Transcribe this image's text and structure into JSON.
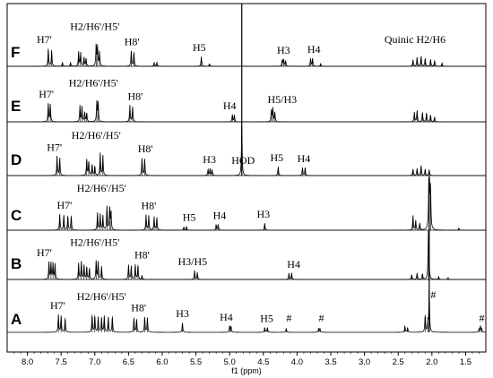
{
  "chart_data": {
    "type": "line",
    "xlabel": "f1 (ppm)",
    "x_reversed": true,
    "xlim": [
      8.3,
      1.2
    ],
    "xticks": [
      8.0,
      7.5,
      7.0,
      6.5,
      6.0,
      5.5,
      5.0,
      4.5,
      4.0,
      3.5,
      3.0,
      2.5,
      2.0,
      1.5
    ],
    "xtick_labels": [
      "8.0",
      "7.5",
      "7.0",
      "6.5",
      "6.0",
      "5.5",
      "5.0",
      "4.5",
      "4.0",
      "3.5",
      "3.0",
      "2.5",
      "2.0",
      "1.5"
    ],
    "spectra": [
      {
        "label": "F",
        "peaks": [
          [
            7.69,
            0.55
          ],
          [
            7.64,
            0.5
          ],
          [
            7.48,
            0.12
          ],
          [
            7.36,
            0.12
          ],
          [
            7.24,
            0.45
          ],
          [
            7.21,
            0.42
          ],
          [
            7.16,
            0.28
          ],
          [
            7.13,
            0.25
          ],
          [
            6.98,
            0.68
          ],
          [
            6.96,
            0.62
          ],
          [
            6.93,
            0.45
          ],
          [
            6.46,
            0.48
          ],
          [
            6.42,
            0.44
          ],
          [
            6.12,
            0.12
          ],
          [
            6.08,
            0.12
          ],
          [
            5.42,
            0.3
          ],
          [
            5.3,
            0.08
          ],
          [
            4.22,
            0.2
          ],
          [
            4.2,
            0.22
          ],
          [
            4.17,
            0.18
          ],
          [
            3.8,
            0.25
          ],
          [
            3.77,
            0.25
          ],
          [
            3.65,
            0.08
          ],
          [
            2.28,
            0.2
          ],
          [
            2.22,
            0.28
          ],
          [
            2.16,
            0.32
          ],
          [
            2.1,
            0.25
          ],
          [
            2.02,
            0.22
          ],
          [
            1.96,
            0.18
          ],
          [
            1.85,
            0.1
          ]
        ],
        "annotations": [
          {
            "text": "H7'",
            "ppm": 7.75
          },
          {
            "text": "H2/H6'/H5'",
            "ppm": 7.0
          },
          {
            "text": "H8'",
            "ppm": 6.45
          },
          {
            "text": "H5",
            "ppm": 5.45
          },
          {
            "text": "H3",
            "ppm": 4.2
          },
          {
            "text": "H4",
            "ppm": 3.75
          },
          {
            "text": "Quinic H2/H6",
            "ppm": 2.25
          }
        ]
      },
      {
        "label": "E",
        "peaks": [
          [
            7.69,
            0.58
          ],
          [
            7.66,
            0.55
          ],
          [
            7.22,
            0.5
          ],
          [
            7.19,
            0.47
          ],
          [
            7.15,
            0.3
          ],
          [
            7.12,
            0.28
          ],
          [
            6.97,
            0.65
          ],
          [
            6.95,
            0.6
          ],
          [
            6.48,
            0.52
          ],
          [
            6.44,
            0.48
          ],
          [
            4.96,
            0.22
          ],
          [
            4.93,
            0.22
          ],
          [
            4.38,
            0.35
          ],
          [
            4.36,
            0.42
          ],
          [
            4.33,
            0.3
          ],
          [
            2.26,
            0.3
          ],
          [
            2.22,
            0.35
          ],
          [
            2.14,
            0.3
          ],
          [
            2.08,
            0.28
          ],
          [
            2.02,
            0.22
          ],
          [
            1.96,
            0.15
          ]
        ],
        "annotations": [
          {
            "text": "H7'",
            "ppm": 7.72
          },
          {
            "text": "H2/H6'/H5'",
            "ppm": 7.02
          },
          {
            "text": "H8'",
            "ppm": 6.4
          },
          {
            "text": "H4",
            "ppm": 5.0
          },
          {
            "text": "H5/H3",
            "ppm": 4.22
          }
        ]
      },
      {
        "label": "D",
        "peaks": [
          [
            7.56,
            0.6
          ],
          [
            7.52,
            0.55
          ],
          [
            7.12,
            0.52
          ],
          [
            7.09,
            0.45
          ],
          [
            7.04,
            0.35
          ],
          [
            7.0,
            0.3
          ],
          [
            6.92,
            0.7
          ],
          [
            6.88,
            0.62
          ],
          [
            6.3,
            0.55
          ],
          [
            6.26,
            0.52
          ],
          [
            5.32,
            0.2
          ],
          [
            5.29,
            0.22
          ],
          [
            5.26,
            0.18
          ],
          [
            4.82,
            1.6
          ],
          [
            4.28,
            0.28
          ],
          [
            3.92,
            0.25
          ],
          [
            3.88,
            0.25
          ],
          [
            2.28,
            0.2
          ],
          [
            2.22,
            0.22
          ],
          [
            2.16,
            0.32
          ],
          [
            2.1,
            0.2
          ],
          [
            2.04,
            0.18
          ]
        ],
        "annotations": [
          {
            "text": "H7'",
            "ppm": 7.6
          },
          {
            "text": "H2/H6'/H5'",
            "ppm": 6.98
          },
          {
            "text": "H8'",
            "ppm": 6.25
          },
          {
            "text": "H3",
            "ppm": 5.3
          },
          {
            "text": "HOD",
            "ppm": 4.8
          },
          {
            "text": "H5",
            "ppm": 4.3
          },
          {
            "text": "H4",
            "ppm": 3.9
          }
        ]
      },
      {
        "label": "C",
        "peaks": [
          [
            7.52,
            0.5
          ],
          [
            7.46,
            0.48
          ],
          [
            7.4,
            0.45
          ],
          [
            7.35,
            0.45
          ],
          [
            6.96,
            0.55
          ],
          [
            6.92,
            0.5
          ],
          [
            6.88,
            0.45
          ],
          [
            6.82,
            0.75
          ],
          [
            6.78,
            0.7
          ],
          [
            6.76,
            0.6
          ],
          [
            6.24,
            0.48
          ],
          [
            6.2,
            0.45
          ],
          [
            6.12,
            0.42
          ],
          [
            6.08,
            0.4
          ],
          [
            5.68,
            0.1
          ],
          [
            5.64,
            0.12
          ],
          [
            5.2,
            0.18
          ],
          [
            5.17,
            0.18
          ],
          [
            4.48,
            0.22
          ],
          [
            2.28,
            0.45
          ],
          [
            2.24,
            0.3
          ],
          [
            2.18,
            0.22
          ],
          [
            2.04,
            3.5
          ],
          [
            2.02,
            1.2
          ],
          [
            1.6,
            0.06
          ]
        ],
        "annotations": [
          {
            "text": "H7'",
            "ppm": 7.45
          },
          {
            "text": "H2/H6'/H5'",
            "ppm": 6.9
          },
          {
            "text": "H8'",
            "ppm": 6.2
          },
          {
            "text": "H5",
            "ppm": 5.6
          },
          {
            "text": "H4",
            "ppm": 5.15
          },
          {
            "text": "H3",
            "ppm": 4.5
          }
        ]
      },
      {
        "label": "B",
        "peaks": [
          [
            7.68,
            0.55
          ],
          [
            7.65,
            0.52
          ],
          [
            7.62,
            0.5
          ],
          [
            7.59,
            0.48
          ],
          [
            7.24,
            0.5
          ],
          [
            7.2,
            0.55
          ],
          [
            7.16,
            0.45
          ],
          [
            7.12,
            0.4
          ],
          [
            7.08,
            0.35
          ],
          [
            6.98,
            0.6
          ],
          [
            6.95,
            0.55
          ],
          [
            6.9,
            0.4
          ],
          [
            6.5,
            0.45
          ],
          [
            6.46,
            0.42
          ],
          [
            6.4,
            0.48
          ],
          [
            6.36,
            0.45
          ],
          [
            6.3,
            0.12
          ],
          [
            5.52,
            0.28
          ],
          [
            5.48,
            0.22
          ],
          [
            4.12,
            0.2
          ],
          [
            4.08,
            0.2
          ],
          [
            2.3,
            0.15
          ],
          [
            2.22,
            0.2
          ],
          [
            2.14,
            0.18
          ],
          [
            2.05,
            2.0
          ],
          [
            1.9,
            0.08
          ],
          [
            1.76,
            0.06
          ]
        ],
        "annotations": [
          {
            "text": "H7'",
            "ppm": 7.75
          },
          {
            "text": "H2/H6'/H5'",
            "ppm": 7.0
          },
          {
            "text": "H8'",
            "ppm": 6.3
          },
          {
            "text": "H3/H5",
            "ppm": 5.55
          },
          {
            "text": "H4",
            "ppm": 4.05
          }
        ]
      },
      {
        "label": "A",
        "peaks": [
          [
            7.54,
            0.55
          ],
          [
            7.5,
            0.52
          ],
          [
            7.44,
            0.45
          ],
          [
            7.04,
            0.55
          ],
          [
            7.0,
            0.52
          ],
          [
            6.95,
            0.48
          ],
          [
            6.9,
            0.45
          ],
          [
            6.86,
            0.5
          ],
          [
            6.8,
            0.48
          ],
          [
            6.74,
            0.5
          ],
          [
            6.42,
            0.45
          ],
          [
            6.38,
            0.42
          ],
          [
            6.26,
            0.48
          ],
          [
            6.22,
            0.45
          ],
          [
            5.7,
            0.3
          ],
          [
            5.0,
            0.2
          ],
          [
            4.98,
            0.18
          ],
          [
            4.48,
            0.15
          ],
          [
            4.44,
            0.15
          ],
          [
            4.16,
            0.12
          ],
          [
            3.68,
            0.12
          ],
          [
            3.66,
            0.12
          ],
          [
            2.4,
            0.2
          ],
          [
            2.36,
            0.15
          ],
          [
            2.1,
            0.55
          ],
          [
            2.06,
            0.35
          ],
          [
            2.04,
            1.4
          ],
          [
            1.3,
            0.1
          ],
          [
            1.28,
            0.2
          ],
          [
            1.26,
            0.1
          ]
        ],
        "annotations": [
          {
            "text": "H7'",
            "ppm": 7.55
          },
          {
            "text": "H2/H6'/H5'",
            "ppm": 6.9
          },
          {
            "text": "H8'",
            "ppm": 6.35
          },
          {
            "text": "H3",
            "ppm": 5.7
          },
          {
            "text": "H4",
            "ppm": 5.05
          },
          {
            "text": "H5",
            "ppm": 4.45
          },
          {
            "text": "#",
            "ppm": 4.12
          },
          {
            "text": "#",
            "ppm": 3.64
          },
          {
            "text": "#",
            "ppm": 1.98
          },
          {
            "text": "#",
            "ppm": 1.26
          }
        ]
      }
    ]
  }
}
